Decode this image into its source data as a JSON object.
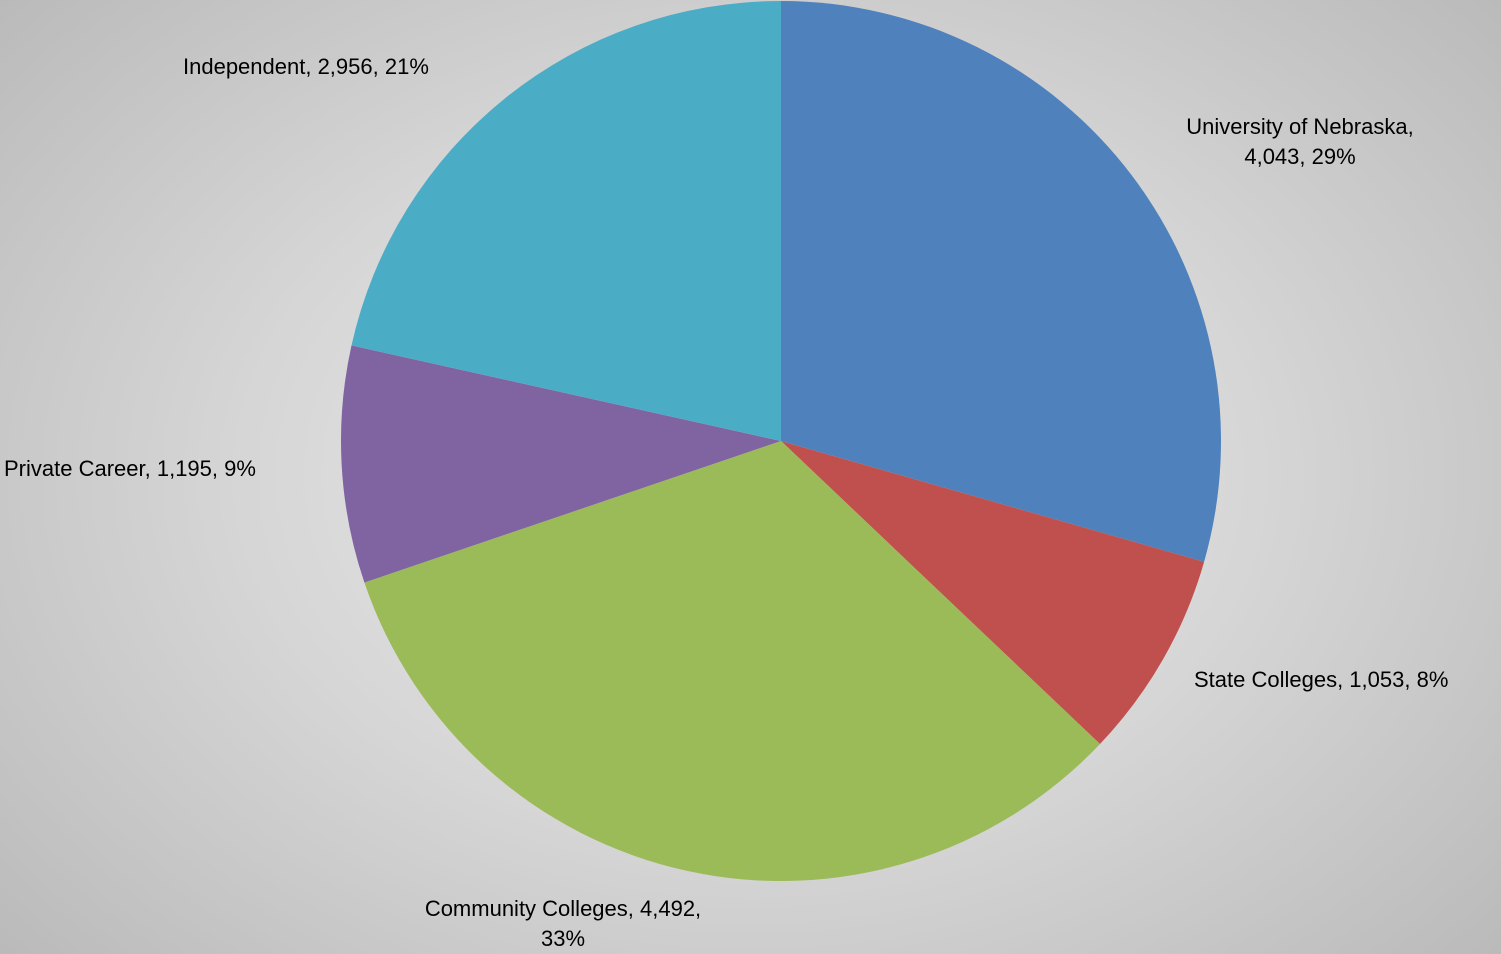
{
  "chart_data": {
    "type": "pie",
    "title": "",
    "slices": [
      {
        "name": "University of Nebraska",
        "value": 4043,
        "percent_label": "29%",
        "color": "#4F81BD"
      },
      {
        "name": "State Colleges",
        "value": 1053,
        "percent_label": "8%",
        "color": "#C0504D"
      },
      {
        "name": "Community Colleges",
        "value": 4492,
        "percent_label": "33%",
        "color": "#9BBB59"
      },
      {
        "name": "Private Career",
        "value": 1195,
        "percent_label": "9%",
        "color": "#8064A2"
      },
      {
        "name": "Independent",
        "value": 2956,
        "percent_label": "21%",
        "color": "#4BACC6"
      }
    ],
    "labels": {
      "university_of_nebraska": [
        "University of Nebraska,",
        "4,043, 29%"
      ],
      "state_colleges": [
        "State Colleges, 1,053, 8%"
      ],
      "community_colleges": [
        "Community Colleges, 4,492,",
        "33%"
      ],
      "private_career": [
        "Private Career, 1,195, 9%"
      ],
      "independent": [
        "Independent, 2,956, 21%"
      ]
    }
  }
}
